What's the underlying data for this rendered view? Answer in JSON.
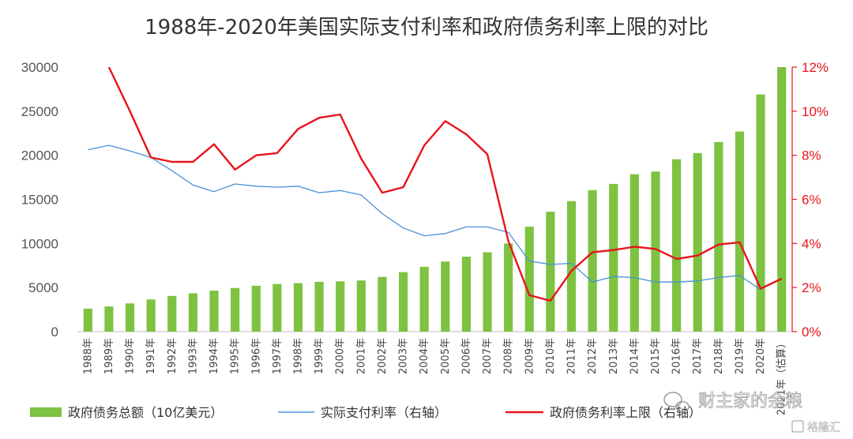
{
  "chart_data": {
    "type": "bar+line",
    "title": "1988年-2020年美国实际支付利率和政府债务利率上限的对比",
    "categories": [
      "1988年",
      "1989年",
      "1990年",
      "1991年",
      "1992年",
      "1993年",
      "1994年",
      "1995年",
      "1996年",
      "1997年",
      "1998年",
      "1999年",
      "2000年",
      "2001年",
      "2002年",
      "2003年",
      "2004年",
      "2005年",
      "2006年",
      "2007年",
      "2008年",
      "2009年",
      "2010年",
      "2011年",
      "2012年",
      "2013年",
      "2014年",
      "2015年",
      "2016年",
      "2017年",
      "2018年",
      "2019年",
      "2020年",
      "2021年（估算）"
    ],
    "left_axis": {
      "ylim": [
        0,
        30000
      ],
      "ticks": [
        "0",
        "5000",
        "10000",
        "15000",
        "20000",
        "25000",
        "30000"
      ]
    },
    "right_axis": {
      "ylim": [
        0,
        12
      ],
      "ticks": [
        "0%",
        "2%",
        "4%",
        "6%",
        "8%",
        "10%",
        "12%"
      ]
    },
    "series": [
      {
        "name": "政府债务总额（10亿美元）",
        "type": "bar",
        "axis": "left",
        "color": "#7dc241",
        "values": [
          2600,
          2850,
          3200,
          3650,
          4050,
          4350,
          4650,
          4950,
          5200,
          5400,
          5500,
          5650,
          5700,
          5800,
          6200,
          6750,
          7350,
          7950,
          8500,
          9000,
          10000,
          11900,
          13600,
          14800,
          16050,
          16750,
          17850,
          18150,
          19550,
          20250,
          21500,
          22700,
          26900,
          30000
        ]
      },
      {
        "name": "实际支付利率（右轴）",
        "type": "line",
        "axis": "right",
        "color": "#4a90d9",
        "values": [
          8.25,
          8.45,
          8.2,
          7.9,
          7.3,
          6.65,
          6.35,
          6.7,
          6.6,
          6.55,
          6.6,
          6.3,
          6.4,
          6.2,
          5.35,
          4.7,
          4.35,
          4.45,
          4.75,
          4.75,
          4.5,
          3.2,
          3.05,
          3.1,
          2.25,
          2.5,
          2.45,
          2.25,
          2.25,
          2.3,
          2.45,
          2.55,
          1.9,
          null
        ]
      },
      {
        "name": "政府债务利率上限（右轴）",
        "type": "line",
        "axis": "right",
        "color": "#e8141c",
        "values": [
          null,
          12.0,
          10.0,
          7.9,
          7.7,
          7.7,
          8.5,
          7.35,
          8.0,
          8.1,
          9.2,
          9.7,
          9.85,
          7.85,
          6.3,
          6.55,
          8.45,
          9.55,
          8.95,
          8.05,
          4.1,
          1.65,
          1.4,
          2.75,
          3.6,
          3.7,
          3.85,
          3.75,
          3.3,
          3.45,
          3.95,
          4.05,
          1.95,
          2.4
        ]
      }
    ],
    "legend_position": "bottom",
    "grid": false
  },
  "watermark": {
    "text": "财主家的余粮",
    "brand": "格隆汇"
  }
}
